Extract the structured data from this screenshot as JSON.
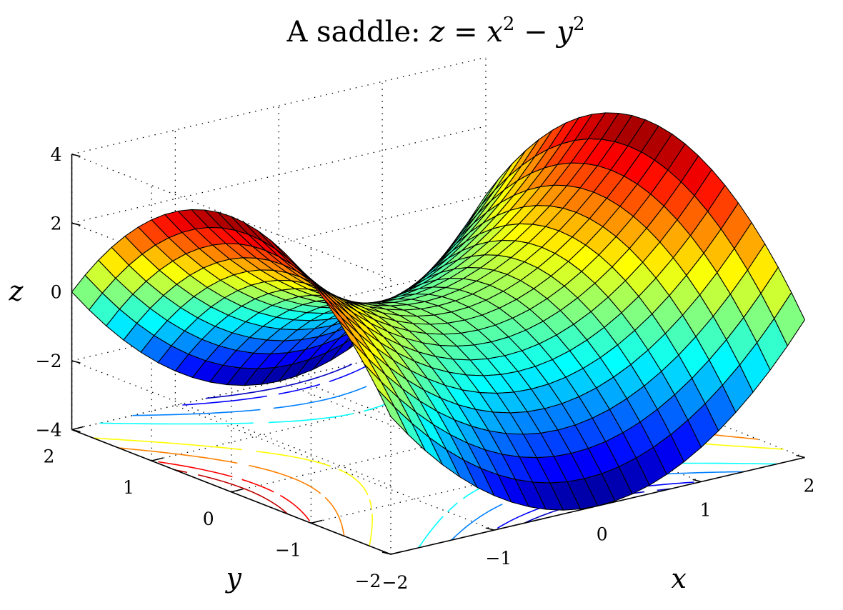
{
  "chart_data": {
    "type": "surface",
    "title": {
      "prefix": "A saddle: ",
      "lhs": "z",
      "equals": " = ",
      "a": "x",
      "minus": " − ",
      "b": "y",
      "exponent": "2"
    },
    "xlabel": "x",
    "ylabel": "y",
    "zlabel": "z",
    "function": "z = x^2 - y^2",
    "xlim": [
      -2,
      2
    ],
    "ylim": [
      -2,
      2
    ],
    "zlim": [
      -4,
      4
    ],
    "grid_points": 25,
    "grid": true,
    "colormap": "jet",
    "contour_projection": "floor",
    "contour_levels": [
      -3.5,
      -3,
      -2,
      -1,
      0,
      1,
      2,
      3,
      3.5
    ],
    "x_ticks": [
      "−2",
      "−1",
      "0",
      "1",
      "2"
    ],
    "x_tick_values": [
      -2,
      -1,
      0,
      1,
      2
    ],
    "y_ticks": [
      "−2",
      "−1",
      "0",
      "1",
      "2"
    ],
    "y_tick_values": [
      -2,
      -1,
      0,
      1,
      2
    ],
    "z_ticks": [
      "−4",
      "−2",
      "0",
      "2",
      "4"
    ],
    "z_tick_values": [
      -4,
      -2,
      0,
      2,
      4
    ]
  }
}
